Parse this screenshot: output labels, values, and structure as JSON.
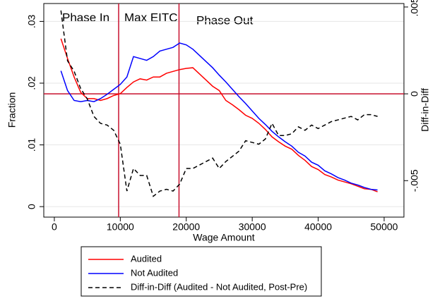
{
  "chart_data": {
    "type": "line",
    "annotations": [
      "Phase In",
      "Max EITC",
      "Phase Out"
    ],
    "xlabel": "Wage Amount",
    "ylabel": "Fraction",
    "y2label": "Diff-in-Diff",
    "x": [
      1000,
      2000,
      3000,
      4000,
      5000,
      6000,
      7000,
      8000,
      9000,
      10000,
      11000,
      12000,
      13000,
      14000,
      15000,
      16000,
      17000,
      18000,
      19000,
      20000,
      21000,
      22000,
      23000,
      24000,
      25000,
      26000,
      27000,
      28000,
      29000,
      30000,
      31000,
      32000,
      33000,
      34000,
      35000,
      36000,
      37000,
      38000,
      39000,
      40000,
      41000,
      42000,
      43000,
      44000,
      45000,
      46000,
      47000,
      48000,
      49000
    ],
    "series": [
      {
        "name": "Audited",
        "color": "#ff0000",
        "dash": false,
        "values": [
          0.0272,
          0.024,
          0.021,
          0.0185,
          0.0175,
          0.0175,
          0.0172,
          0.0175,
          0.018,
          0.0183,
          0.0193,
          0.0202,
          0.0207,
          0.0205,
          0.021,
          0.021,
          0.0216,
          0.0219,
          0.0222,
          0.0224,
          0.0225,
          0.0215,
          0.0205,
          0.0195,
          0.0188,
          0.0172,
          0.0165,
          0.0157,
          0.0148,
          0.0143,
          0.0135,
          0.0125,
          0.0113,
          0.0105,
          0.0098,
          0.0093,
          0.0083,
          0.0075,
          0.0065,
          0.006,
          0.0052,
          0.0048,
          0.0043,
          0.004,
          0.0037,
          0.0033,
          0.0029,
          0.0028,
          0.0024
        ]
      },
      {
        "name": "Not Audited",
        "color": "#0000ff",
        "dash": false,
        "values": [
          0.022,
          0.0188,
          0.0172,
          0.017,
          0.0172,
          0.017,
          0.0175,
          0.0182,
          0.019,
          0.0198,
          0.021,
          0.0243,
          0.024,
          0.0237,
          0.0243,
          0.0252,
          0.0255,
          0.0258,
          0.0265,
          0.0262,
          0.0255,
          0.0245,
          0.0235,
          0.0225,
          0.0213,
          0.0202,
          0.019,
          0.0178,
          0.0167,
          0.0155,
          0.0143,
          0.0133,
          0.0122,
          0.0113,
          0.0105,
          0.0098,
          0.0088,
          0.0082,
          0.0072,
          0.0067,
          0.0058,
          0.0053,
          0.0047,
          0.0043,
          0.0038,
          0.0035,
          0.0031,
          0.0028,
          0.0027
        ]
      },
      {
        "name": "Diff-in-Diff (Audited - Not Audited, Post-Pre)",
        "color": "#000000",
        "dash": true,
        "axis": "y2",
        "values": [
          0.0048,
          0.0019,
          0.0013,
          0.0003,
          -0.0003,
          -0.0013,
          -0.0017,
          -0.0018,
          -0.0021,
          -0.0029,
          -0.0056,
          -0.0043,
          -0.0047,
          -0.0047,
          -0.0059,
          -0.0056,
          -0.0055,
          -0.0056,
          -0.0052,
          -0.0043,
          -0.0043,
          -0.0041,
          -0.0039,
          -0.0037,
          -0.0043,
          -0.0039,
          -0.0036,
          -0.0033,
          -0.0027,
          -0.0028,
          -0.0029,
          -0.0026,
          -0.0017,
          -0.0024,
          -0.0024,
          -0.0023,
          -0.0019,
          -0.0021,
          -0.0018,
          -0.002,
          -0.0018,
          -0.0016,
          -0.0015,
          -0.0014,
          -0.0013,
          -0.0015,
          -0.0012,
          -0.0012,
          -0.0013
        ]
      }
    ],
    "xlim": [
      -1600,
      53000
    ],
    "xticks": [
      0,
      10000,
      20000,
      30000,
      40000,
      50000
    ],
    "ylim": [
      -0.0017,
      0.0329
    ],
    "yticks": [
      0,
      {
        "value": 0.01,
        "label": ".01"
      },
      {
        "value": 0.02,
        "label": ".02"
      },
      {
        "value": 0.03,
        "label": ".03"
      }
    ],
    "y2lim": [
      -0.0071,
      0.0052
    ],
    "y2ticks": [
      {
        "value": -0.005,
        "label": "-.005"
      },
      0,
      {
        "value": 0.005,
        "label": ".005"
      }
    ],
    "reference_lines": {
      "color": "#c8102e",
      "x": [
        9750,
        18900
      ],
      "y2": [
        0
      ]
    },
    "grid": true,
    "legend": "bottom"
  }
}
